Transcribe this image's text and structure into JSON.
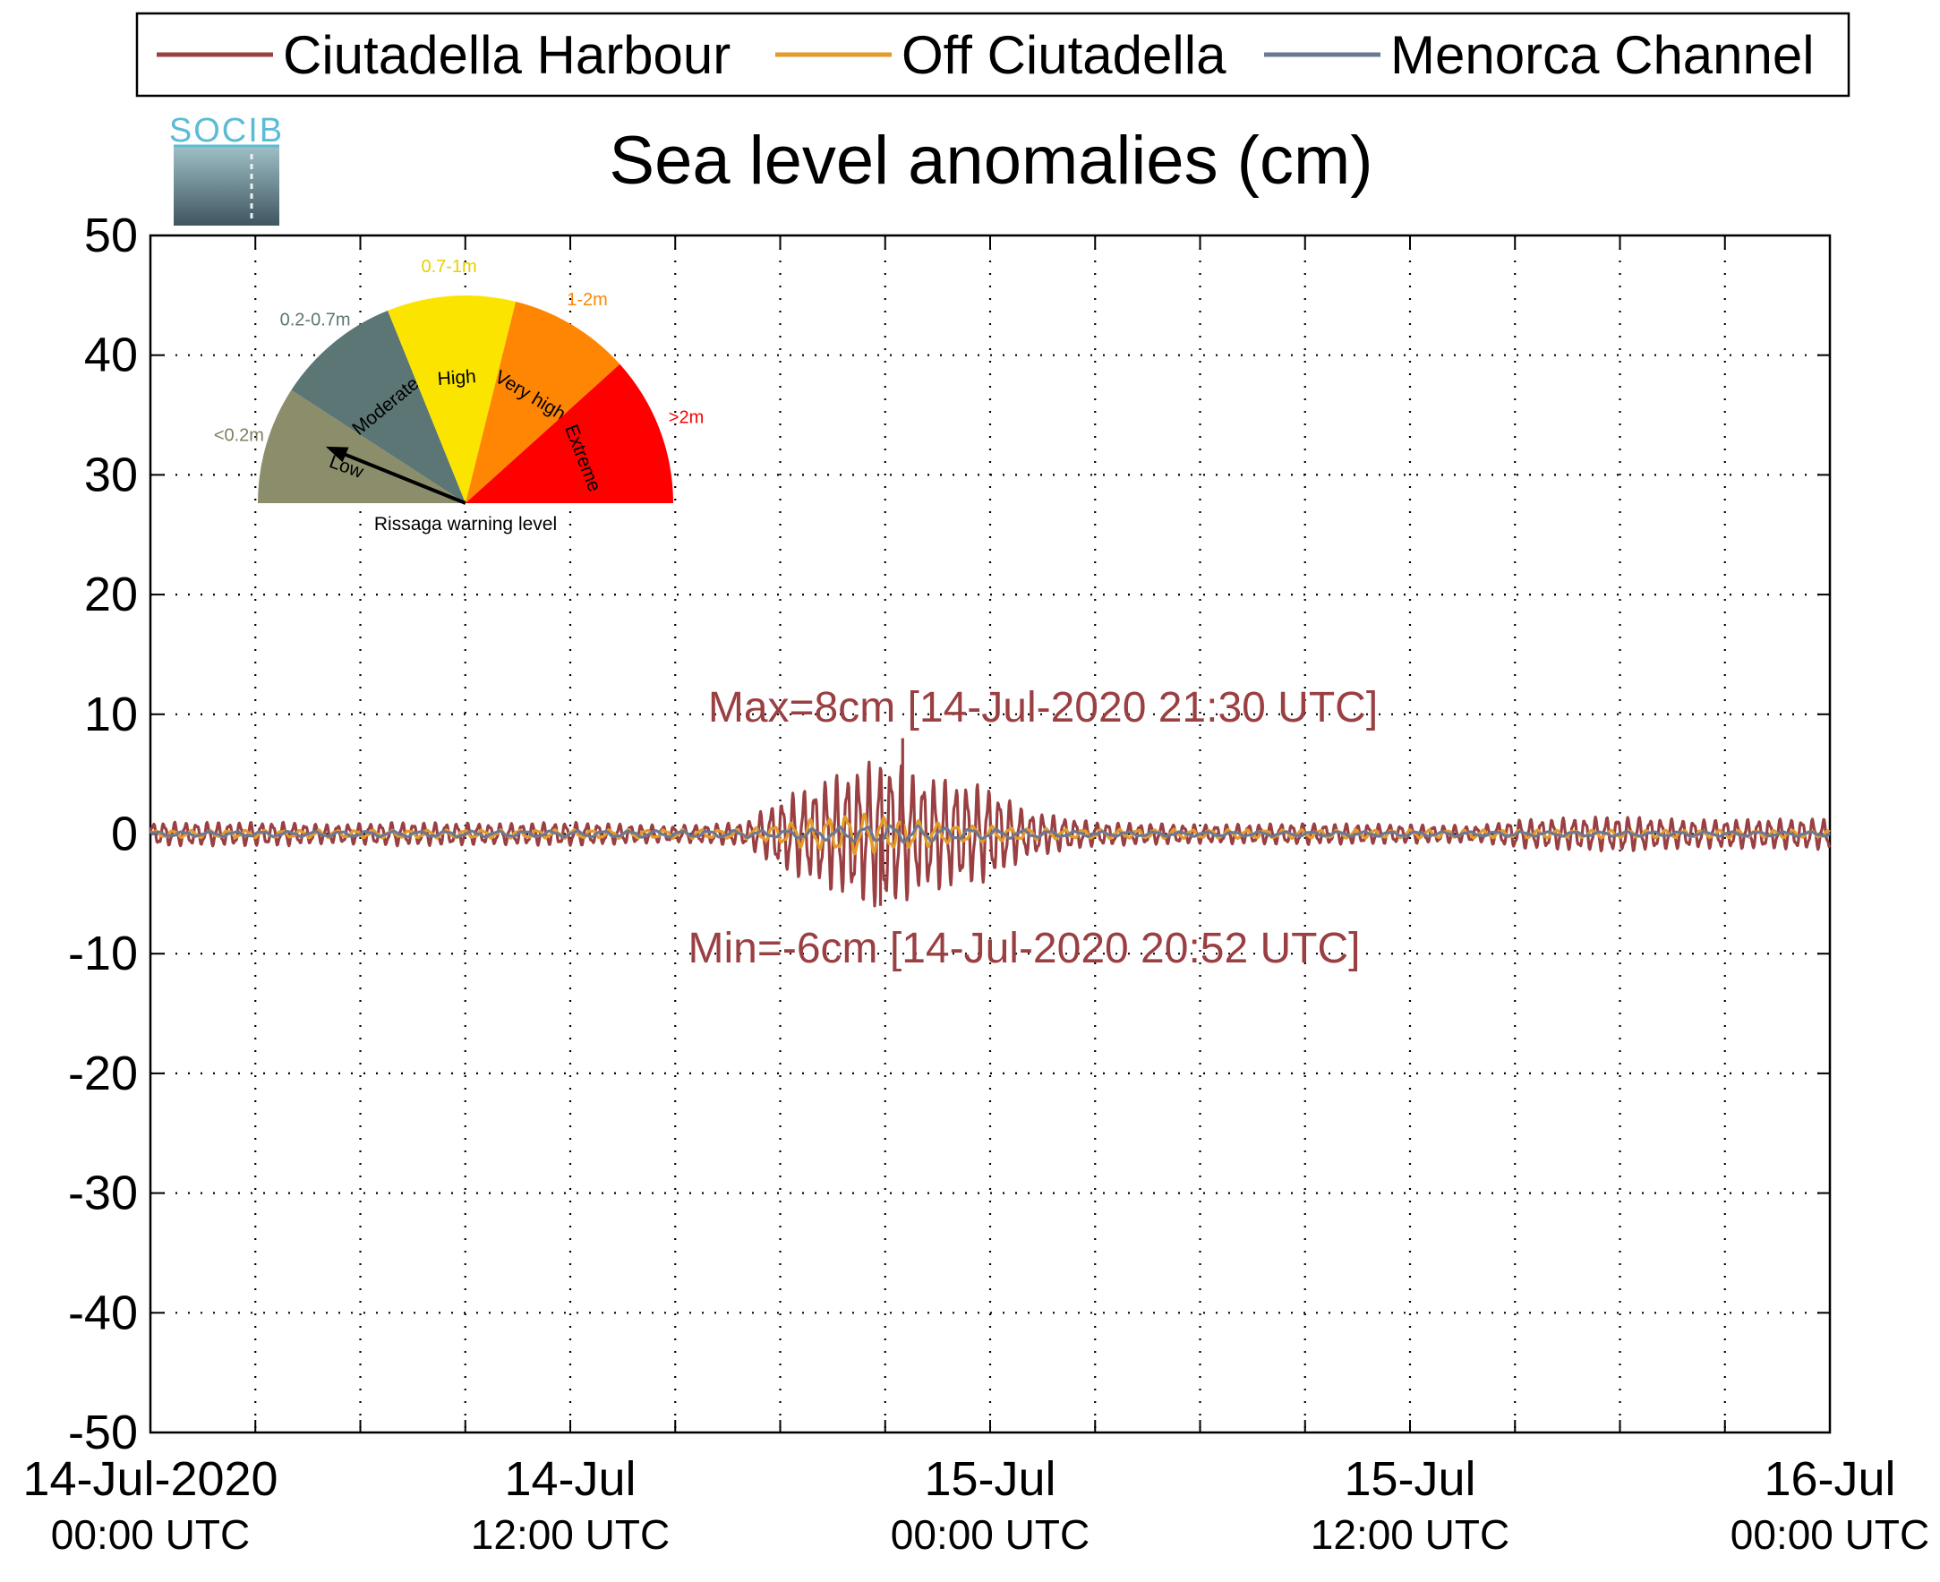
{
  "chart_data": {
    "type": "line",
    "title": "Sea level anomalies (cm)",
    "xlabel": "",
    "ylabel": "",
    "xlim": [
      "2020-07-14T00:00Z",
      "2020-07-16T00:00Z"
    ],
    "ylim": [
      -50,
      50
    ],
    "grid": true,
    "legend_position": "top",
    "y_ticks": [
      "50",
      "40",
      "30",
      "20",
      "10",
      "0",
      "-10",
      "-20",
      "-30",
      "-40",
      "-50"
    ],
    "x_tick_labels": [
      {
        "line1": "14-Jul-2020",
        "line2": "00:00 UTC"
      },
      {
        "line1": "14-Jul",
        "line2": "12:00 UTC"
      },
      {
        "line1": "15-Jul",
        "line2": "00:00 UTC"
      },
      {
        "line1": "15-Jul",
        "line2": "12:00 UTC"
      },
      {
        "line1": "16-Jul",
        "line2": "00:00 UTC"
      }
    ],
    "series": [
      {
        "name": "Ciutadella Harbour",
        "color": "#9a3f42",
        "envelope_cm": [
          [
            0.0,
            1.0
          ],
          [
            4.0,
            1.0
          ],
          [
            5.0,
            0.8
          ],
          [
            7.0,
            1.0
          ],
          [
            10.0,
            0.9
          ],
          [
            12.0,
            1.0
          ],
          [
            15.0,
            0.7
          ],
          [
            17.0,
            1.0
          ],
          [
            18.0,
            3.0
          ],
          [
            20.0,
            5.5
          ],
          [
            21.0,
            6.5
          ],
          [
            22.0,
            5.0
          ],
          [
            24.0,
            4.0
          ],
          [
            25.0,
            2.0
          ],
          [
            27.0,
            1.0
          ],
          [
            30.0,
            0.8
          ],
          [
            33.0,
            0.9
          ],
          [
            36.0,
            0.8
          ],
          [
            38.0,
            0.7
          ],
          [
            39.0,
            1.2
          ],
          [
            42.0,
            1.5
          ],
          [
            44.0,
            1.2
          ],
          [
            48.0,
            1.3
          ]
        ],
        "annotations": {
          "max": "Max=8cm [14-Jul-2020 21:30 UTC]",
          "min": "Min=-6cm [14-Jul-2020 20:52 UTC]",
          "max_value": 8,
          "max_time": "2020-07-14T21:30Z",
          "min_value": -6,
          "min_time": "2020-07-14T20:52Z"
        }
      },
      {
        "name": "Off Ciutadella",
        "color": "#e39b2b",
        "envelope_cm": [
          [
            0.0,
            0.3
          ],
          [
            17.0,
            0.4
          ],
          [
            19.0,
            1.3
          ],
          [
            20.0,
            1.8
          ],
          [
            21.0,
            1.5
          ],
          [
            23.0,
            0.8
          ],
          [
            26.0,
            0.4
          ],
          [
            48.0,
            0.3
          ]
        ]
      },
      {
        "name": "Menorca Channel",
        "color": "#6c7893",
        "envelope_cm": [
          [
            0.0,
            0.2
          ],
          [
            18.0,
            0.3
          ],
          [
            21.0,
            0.8
          ],
          [
            24.0,
            0.4
          ],
          [
            27.0,
            0.2
          ],
          [
            48.0,
            0.2
          ]
        ]
      }
    ]
  },
  "logo": {
    "text": "SOCIB",
    "color": "#5bbcd3"
  },
  "gauge": {
    "caption": "Rissaga warning level",
    "segments": [
      {
        "label": "Low",
        "range": "<0.2m",
        "color": "#8b8d6b",
        "range_color": "#7d7f5f"
      },
      {
        "label": "Moderate",
        "range": "0.2-0.7m",
        "color": "#5b7674",
        "range_color": "#5b7674"
      },
      {
        "label": "High",
        "range": "0.7-1m",
        "color": "#fbe400",
        "range_color": "#e8d000"
      },
      {
        "label": "Very high",
        "range": "1-2m",
        "color": "#fe8602",
        "range_color": "#fe8602"
      },
      {
        "label": "Extreme",
        "range": ">2m",
        "color": "#fe0000",
        "range_color": "#fe0000"
      }
    ],
    "current_level": "Low"
  }
}
